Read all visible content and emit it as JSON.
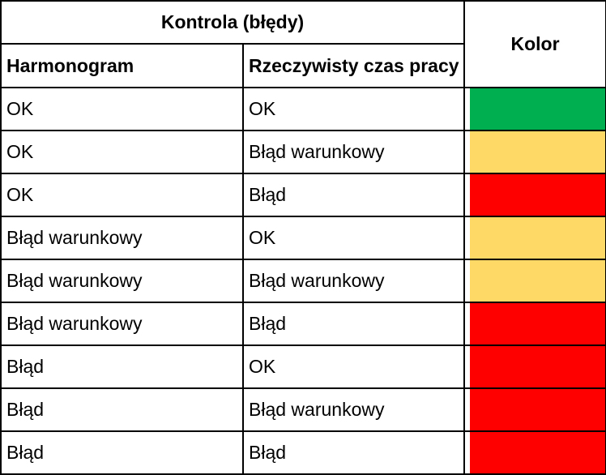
{
  "table": {
    "group_header": "Kontrola (błędy)",
    "color_header": "Kolor",
    "col_schedule": "Harmonogram",
    "col_actual": "Rzeczywisty czas pracy",
    "rows": [
      {
        "schedule": "OK",
        "actual": "OK",
        "color_name": "green",
        "color": "#00B050"
      },
      {
        "schedule": "OK",
        "actual": "Błąd warunkowy",
        "color_name": "yellow",
        "color": "#FFD966"
      },
      {
        "schedule": "OK",
        "actual": "Błąd",
        "color_name": "red",
        "color": "#FF0000"
      },
      {
        "schedule": "Błąd warunkowy",
        "actual": "OK",
        "color_name": "yellow",
        "color": "#FFD966"
      },
      {
        "schedule": "Błąd warunkowy",
        "actual": "Błąd warunkowy",
        "color_name": "yellow",
        "color": "#FFD966"
      },
      {
        "schedule": "Błąd warunkowy",
        "actual": "Błąd",
        "color_name": "red",
        "color": "#FF0000"
      },
      {
        "schedule": "Błąd",
        "actual": "OK",
        "color_name": "red",
        "color": "#FF0000"
      },
      {
        "schedule": "Błąd",
        "actual": "Błąd warunkowy",
        "color_name": "red",
        "color": "#FF0000"
      },
      {
        "schedule": "Błąd",
        "actual": "Błąd",
        "color_name": "red",
        "color": "#FF0000"
      }
    ]
  }
}
